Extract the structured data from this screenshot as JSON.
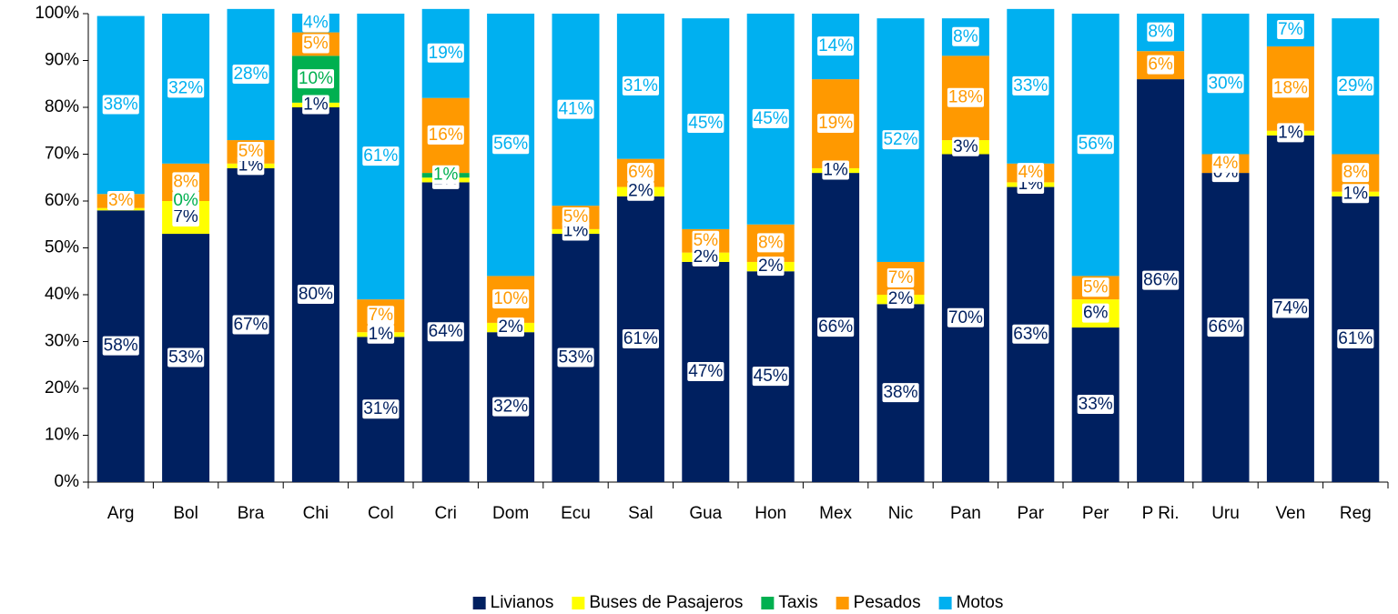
{
  "chart_data": {
    "type": "stacked_bar",
    "categories": [
      "Arg",
      "Bol",
      "Bra",
      "Chi",
      "Col",
      "Cri",
      "Dom",
      "Ecu",
      "Sal",
      "Gua",
      "Hon",
      "Mex",
      "Nic",
      "Pan",
      "Par",
      "Per",
      "P Ri.",
      "Uru",
      "Ven",
      "Reg"
    ],
    "series": [
      {
        "name": "Livianos",
        "color": "#002060",
        "label_color": "#002060",
        "values": [
          58,
          53,
          67,
          80,
          31,
          64,
          32,
          53,
          61,
          47,
          45,
          66,
          38,
          70,
          63,
          33,
          86,
          66,
          74,
          61
        ],
        "value_labels": [
          "58%",
          "53%",
          "67%",
          "80%",
          "31%",
          "64%",
          "32%",
          "53%",
          "61%",
          "47%",
          "45%",
          "66%",
          "38%",
          "70%",
          "63%",
          "33%",
          "86%",
          "66%",
          "74%",
          "61%"
        ]
      },
      {
        "name": "Buses de Pasajeros",
        "color": "#ffff00",
        "label_color": "#002060",
        "values": [
          0.5,
          7,
          1,
          1,
          1,
          1,
          2,
          1,
          2,
          2,
          2,
          1,
          2,
          3,
          1,
          6,
          0,
          0,
          1,
          1
        ],
        "value_labels": [
          null,
          "7%",
          "1%",
          "1%",
          "1%",
          "1%",
          "2%",
          "1%",
          "2%",
          "2%",
          "2%",
          "1%",
          "2%",
          "3%",
          "1%",
          "6%",
          null,
          "0%",
          "1%",
          "1%"
        ]
      },
      {
        "name": "Taxis",
        "color": "#00b050",
        "label_color": "#00b050",
        "values": [
          0,
          0,
          0,
          10,
          0,
          1,
          0,
          0,
          0,
          0,
          0,
          0,
          0,
          0,
          0,
          0,
          0,
          0,
          0,
          0
        ],
        "value_labels": [
          null,
          "0%",
          null,
          "10%",
          null,
          "1%",
          null,
          null,
          null,
          null,
          null,
          null,
          null,
          null,
          null,
          null,
          null,
          null,
          null,
          null
        ]
      },
      {
        "name": "Pesados",
        "color": "#ff9900",
        "label_color": "#ff9900",
        "values": [
          3,
          8,
          5,
          5,
          7,
          16,
          10,
          5,
          6,
          5,
          8,
          19,
          7,
          18,
          4,
          5,
          6,
          4,
          18,
          8
        ],
        "value_labels": [
          "3%",
          "8%",
          "5%",
          "5%",
          "7%",
          "16%",
          "10%",
          "5%",
          "6%",
          "5%",
          "8%",
          "19%",
          "7%",
          "18%",
          "4%",
          "5%",
          "6%",
          "4%",
          "18%",
          "8%"
        ]
      },
      {
        "name": "Motos",
        "color": "#00b0f0",
        "label_color": "#00b0f0",
        "values": [
          38,
          32,
          28,
          4,
          61,
          19,
          56,
          41,
          31,
          45,
          45,
          14,
          52,
          8,
          33,
          56,
          8,
          30,
          7,
          29
        ],
        "value_labels": [
          "38%",
          "32%",
          "28%",
          "4%",
          "61%",
          "19%",
          "56%",
          "41%",
          "31%",
          "45%",
          "45%",
          "14%",
          "52%",
          "8%",
          "33%",
          "56%",
          "8%",
          "30%",
          "7%",
          "29%"
        ]
      }
    ],
    "ylim": [
      0,
      100
    ],
    "yticks": [
      {
        "value": 0,
        "label": "0%"
      },
      {
        "value": 10,
        "label": "10%"
      },
      {
        "value": 20,
        "label": "20%"
      },
      {
        "value": 30,
        "label": "30%"
      },
      {
        "value": 40,
        "label": "40%"
      },
      {
        "value": 50,
        "label": "50%"
      },
      {
        "value": 60,
        "label": "60%"
      },
      {
        "value": 70,
        "label": "70%"
      },
      {
        "value": 80,
        "label": "80%"
      },
      {
        "value": 90,
        "label": "90%"
      },
      {
        "value": 100,
        "label": "100%"
      }
    ],
    "legend": "bottom"
  }
}
